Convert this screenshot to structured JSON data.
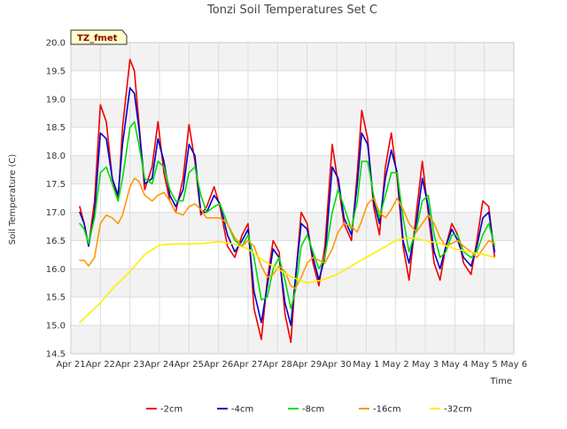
{
  "chart_data": {
    "type": "line",
    "title": "Tonzi Soil Temperatures Set C",
    "xlabel": "Time",
    "ylabel": "Soil Temperature (C)",
    "xlim": [
      0,
      15
    ],
    "ylim": [
      14.5,
      20.0
    ],
    "yticks": [
      14.5,
      15.0,
      15.5,
      16.0,
      16.5,
      17.0,
      17.5,
      18.0,
      18.5,
      19.0,
      19.5,
      20.0
    ],
    "ytick_labels": [
      "14.5",
      "15.0",
      "15.5",
      "16.0",
      "16.5",
      "17.0",
      "17.5",
      "18.0",
      "18.5",
      "19.0",
      "19.5",
      "20.0"
    ],
    "xticks": [
      0,
      1,
      2,
      3,
      4,
      5,
      6,
      7,
      8,
      9,
      10,
      11,
      12,
      13,
      14,
      15
    ],
    "xtick_labels": [
      "Apr 21",
      "Apr 22",
      "Apr 23",
      "Apr 24",
      "Apr 25",
      "Apr 26",
      "Apr 27",
      "Apr 28",
      "Apr 29",
      "Apr 30",
      "May 1",
      "May 2",
      "May 3",
      "May 4",
      "May 5",
      "May 6"
    ],
    "annotation": "TZ_fmet",
    "legend_position": "bottom-center",
    "grid": true,
    "series": [
      {
        "name": "-2cm",
        "color": "#ee0000",
        "x": [
          0.3,
          0.45,
          0.6,
          0.8,
          1.0,
          1.2,
          1.4,
          1.6,
          1.75,
          2.0,
          2.15,
          2.3,
          2.5,
          2.75,
          2.95,
          3.15,
          3.35,
          3.55,
          3.8,
          4.0,
          4.2,
          4.4,
          4.6,
          4.85,
          5.05,
          5.3,
          5.55,
          5.8,
          6.0,
          6.2,
          6.45,
          6.65,
          6.85,
          7.05,
          7.25,
          7.45,
          7.6,
          7.8,
          8.0,
          8.2,
          8.4,
          8.6,
          8.85,
          9.05,
          9.25,
          9.5,
          9.7,
          9.85,
          10.05,
          10.25,
          10.45,
          10.65,
          10.85,
          11.05,
          11.25,
          11.45,
          11.7,
          11.9,
          12.1,
          12.3,
          12.5,
          12.7,
          12.9,
          13.1,
          13.3,
          13.55,
          13.75,
          13.95,
          14.15,
          14.35
        ],
        "y": [
          17.1,
          16.8,
          16.4,
          17.2,
          18.9,
          18.6,
          17.6,
          17.2,
          18.5,
          19.7,
          19.5,
          18.6,
          17.4,
          17.8,
          18.6,
          17.7,
          17.2,
          17.0,
          17.6,
          18.55,
          17.9,
          16.95,
          17.1,
          17.45,
          17.1,
          16.4,
          16.2,
          16.6,
          16.8,
          15.3,
          14.75,
          15.8,
          16.5,
          16.3,
          15.2,
          14.7,
          15.8,
          17.0,
          16.8,
          16.1,
          15.7,
          16.4,
          18.2,
          17.5,
          16.8,
          16.5,
          17.7,
          18.8,
          18.3,
          17.1,
          16.6,
          17.8,
          18.4,
          17.6,
          16.4,
          15.8,
          17.0,
          17.9,
          17.0,
          16.1,
          15.8,
          16.4,
          16.8,
          16.6,
          16.1,
          15.9,
          16.5,
          17.2,
          17.1,
          16.2
        ]
      },
      {
        "name": "-4cm",
        "color": "#0000cc",
        "x": [
          0.3,
          0.45,
          0.6,
          0.8,
          1.0,
          1.2,
          1.4,
          1.6,
          1.75,
          2.0,
          2.15,
          2.3,
          2.5,
          2.75,
          2.95,
          3.15,
          3.35,
          3.55,
          3.8,
          4.0,
          4.2,
          4.4,
          4.6,
          4.85,
          5.05,
          5.3,
          5.55,
          5.8,
          6.0,
          6.2,
          6.45,
          6.65,
          6.85,
          7.05,
          7.25,
          7.45,
          7.6,
          7.8,
          8.0,
          8.2,
          8.4,
          8.6,
          8.85,
          9.05,
          9.25,
          9.5,
          9.7,
          9.85,
          10.05,
          10.25,
          10.45,
          10.65,
          10.85,
          11.05,
          11.25,
          11.45,
          11.7,
          11.9,
          12.1,
          12.3,
          12.5,
          12.7,
          12.9,
          13.1,
          13.3,
          13.55,
          13.75,
          13.95,
          14.15,
          14.35
        ],
        "y": [
          17.0,
          16.8,
          16.4,
          17.0,
          18.4,
          18.3,
          17.6,
          17.3,
          18.2,
          19.2,
          19.1,
          18.5,
          17.5,
          17.6,
          18.3,
          17.9,
          17.3,
          17.1,
          17.4,
          18.2,
          18.0,
          17.0,
          17.0,
          17.3,
          17.15,
          16.6,
          16.3,
          16.5,
          16.7,
          15.6,
          15.05,
          15.7,
          16.35,
          16.2,
          15.4,
          15.0,
          15.8,
          16.8,
          16.7,
          16.2,
          15.8,
          16.2,
          17.8,
          17.6,
          16.9,
          16.6,
          17.5,
          18.4,
          18.2,
          17.2,
          16.8,
          17.6,
          18.1,
          17.7,
          16.5,
          16.1,
          16.8,
          17.6,
          17.1,
          16.3,
          16.0,
          16.4,
          16.7,
          16.5,
          16.2,
          16.05,
          16.4,
          16.9,
          17.0,
          16.3
        ]
      },
      {
        "name": "-8cm",
        "color": "#00dd00",
        "x": [
          0.3,
          0.45,
          0.6,
          0.8,
          1.0,
          1.2,
          1.4,
          1.6,
          1.75,
          2.0,
          2.15,
          2.3,
          2.5,
          2.75,
          2.95,
          3.15,
          3.35,
          3.55,
          3.8,
          4.0,
          4.2,
          4.4,
          4.6,
          4.85,
          5.05,
          5.3,
          5.55,
          5.8,
          6.0,
          6.2,
          6.45,
          6.65,
          6.85,
          7.05,
          7.25,
          7.45,
          7.6,
          7.8,
          8.0,
          8.2,
          8.4,
          8.6,
          8.85,
          9.05,
          9.25,
          9.5,
          9.7,
          9.85,
          10.05,
          10.25,
          10.45,
          10.65,
          10.85,
          11.05,
          11.25,
          11.45,
          11.7,
          11.9,
          12.1,
          12.3,
          12.5,
          12.7,
          12.9,
          13.1,
          13.3,
          13.55,
          13.75,
          13.95,
          14.15,
          14.35
        ],
        "y": [
          16.8,
          16.7,
          16.45,
          16.9,
          17.7,
          17.8,
          17.5,
          17.2,
          17.6,
          18.5,
          18.6,
          18.2,
          17.6,
          17.5,
          17.9,
          17.8,
          17.4,
          17.2,
          17.2,
          17.7,
          17.8,
          17.3,
          17.0,
          17.1,
          17.15,
          16.8,
          16.5,
          16.4,
          16.6,
          16.2,
          15.45,
          15.5,
          16.0,
          16.2,
          15.8,
          15.3,
          15.6,
          16.4,
          16.6,
          16.3,
          16.0,
          16.2,
          17.0,
          17.4,
          17.1,
          16.7,
          17.2,
          17.9,
          17.9,
          17.3,
          16.9,
          17.3,
          17.7,
          17.7,
          16.9,
          16.3,
          16.7,
          17.2,
          17.3,
          16.6,
          16.2,
          16.3,
          16.6,
          16.6,
          16.3,
          16.2,
          16.3,
          16.6,
          16.8,
          16.4
        ]
      },
      {
        "name": "-16cm",
        "color": "#ff9900",
        "x": [
          0.3,
          0.45,
          0.6,
          0.8,
          1.0,
          1.2,
          1.4,
          1.6,
          1.75,
          2.0,
          2.15,
          2.3,
          2.5,
          2.75,
          2.95,
          3.15,
          3.35,
          3.55,
          3.8,
          4.0,
          4.2,
          4.4,
          4.6,
          4.85,
          5.05,
          5.3,
          5.55,
          5.8,
          6.0,
          6.2,
          6.45,
          6.65,
          6.85,
          7.05,
          7.25,
          7.45,
          7.6,
          7.8,
          8.0,
          8.2,
          8.4,
          8.6,
          8.85,
          9.05,
          9.25,
          9.5,
          9.7,
          9.85,
          10.05,
          10.25,
          10.45,
          10.65,
          10.85,
          11.05,
          11.25,
          11.45,
          11.7,
          11.9,
          12.1,
          12.3,
          12.5,
          12.7,
          12.9,
          13.1,
          13.3,
          13.55,
          13.75,
          13.95,
          14.15,
          14.35
        ],
        "y": [
          16.15,
          16.15,
          16.05,
          16.2,
          16.8,
          16.95,
          16.9,
          16.8,
          16.95,
          17.45,
          17.6,
          17.55,
          17.3,
          17.2,
          17.3,
          17.35,
          17.2,
          17.0,
          16.95,
          17.1,
          17.15,
          17.05,
          16.9,
          16.9,
          16.9,
          16.8,
          16.55,
          16.4,
          16.5,
          16.4,
          16.05,
          15.85,
          15.9,
          16.05,
          15.95,
          15.7,
          15.65,
          15.85,
          16.1,
          16.2,
          16.15,
          16.1,
          16.35,
          16.65,
          16.8,
          16.75,
          16.65,
          16.85,
          17.15,
          17.25,
          17.0,
          16.9,
          17.05,
          17.25,
          17.05,
          16.8,
          16.65,
          16.8,
          16.95,
          16.8,
          16.55,
          16.4,
          16.45,
          16.5,
          16.4,
          16.3,
          16.2,
          16.35,
          16.5,
          16.45
        ]
      },
      {
        "name": "-32cm",
        "color": "#ffee00",
        "x": [
          0.3,
          0.6,
          1.0,
          1.5,
          2.0,
          2.5,
          3.0,
          3.5,
          4.0,
          4.5,
          5.0,
          5.5,
          6.0,
          6.5,
          7.0,
          7.5,
          8.0,
          8.5,
          9.0,
          9.5,
          10.0,
          10.5,
          11.0,
          11.5,
          12.0,
          12.5,
          13.0,
          13.5,
          14.0,
          14.35
        ],
        "y": [
          15.05,
          15.2,
          15.4,
          15.7,
          15.95,
          16.25,
          16.42,
          16.44,
          16.44,
          16.45,
          16.48,
          16.44,
          16.35,
          16.15,
          16.0,
          15.85,
          15.75,
          15.8,
          15.9,
          16.05,
          16.2,
          16.35,
          16.5,
          16.55,
          16.5,
          16.45,
          16.35,
          16.3,
          16.25,
          16.2
        ]
      }
    ]
  }
}
